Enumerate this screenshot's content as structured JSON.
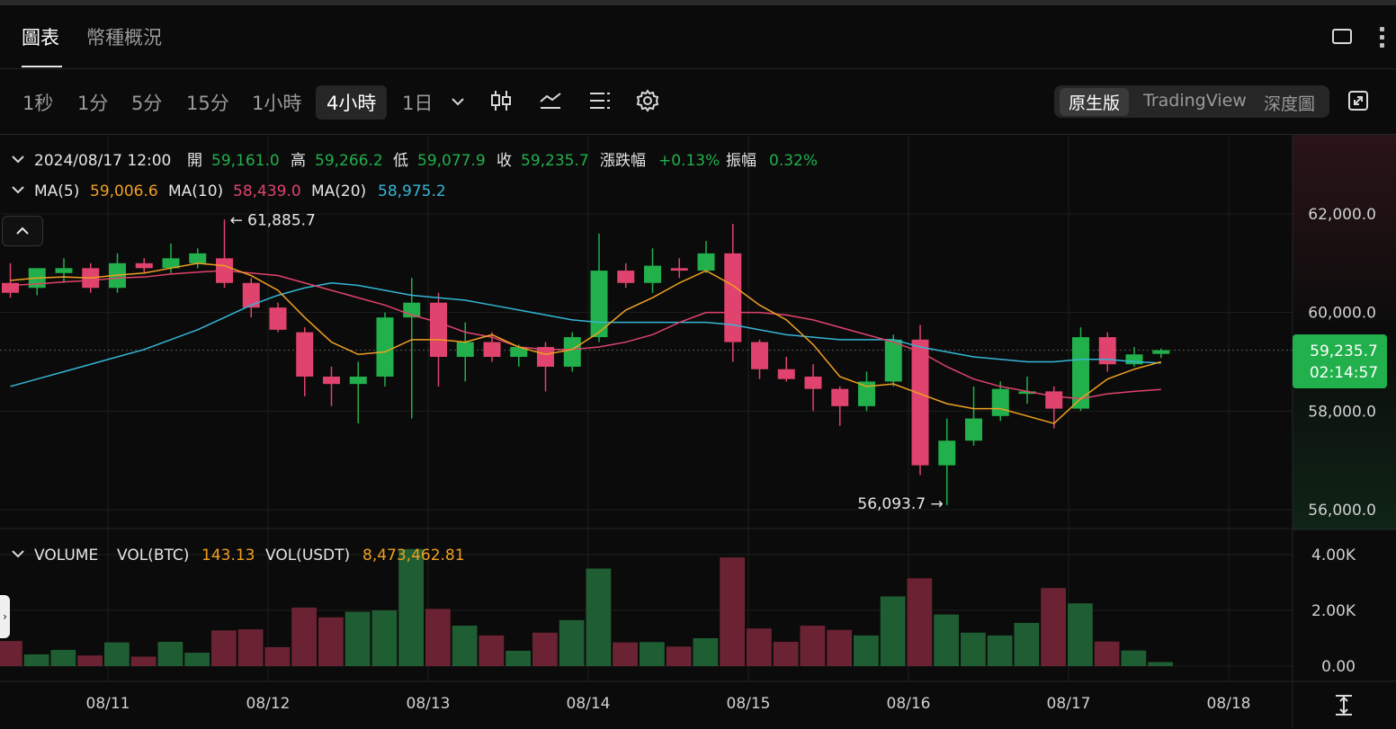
{
  "tabs": {
    "chart": "圖表",
    "overview": "幣種概況"
  },
  "toolbar": {
    "timeframes": [
      "1秒",
      "1分",
      "5分",
      "15分",
      "1小時",
      "4小時",
      "1日"
    ],
    "selected": "4小時",
    "views": [
      "原生版",
      "TradingView",
      "深度圖"
    ],
    "selected_view": "原生版"
  },
  "ohlc": {
    "datetime": "2024/08/17 12:00",
    "open_label": "開",
    "open": "59,161.0",
    "high_label": "高",
    "high": "59,266.2",
    "low_label": "低",
    "low": "59,077.9",
    "close_label": "收",
    "close": "59,235.7",
    "change_label": "漲跌幅",
    "change": "+0.13%",
    "amp_label": "振幅",
    "amp": "0.32%"
  },
  "ma": {
    "ma5_label": "MA(5)",
    "ma5": "59,006.6",
    "ma10_label": "MA(10)",
    "ma10": "58,439.0",
    "ma20_label": "MA(20)",
    "ma20": "58,975.2"
  },
  "volume": {
    "label": "VOLUME",
    "btc_label": "VOL(BTC)",
    "btc": "143.13",
    "usdt_label": "VOL(USDT)",
    "usdt": "8,473,462.81"
  },
  "colors": {
    "up": "#21b04b",
    "down": "#e0436d",
    "ma5": "#f0a020",
    "ma10": "#e0436d",
    "ma20": "#35b6d6",
    "vol_up": "#1f5e33",
    "vol_down": "#6b2333"
  },
  "chart_data": {
    "type": "candlestick",
    "price_axis": {
      "ticks": [
        62000,
        60000,
        58000,
        56000
      ],
      "tick_labels": [
        "62,000.0",
        "60,000.0",
        "58,000.0",
        "56,000.0"
      ],
      "ylim": [
        55600,
        63800
      ]
    },
    "volume_axis": {
      "ticks": [
        4000,
        2000,
        0
      ],
      "tick_labels": [
        "4.00K",
        "2.00K",
        "0.00"
      ],
      "ylim": [
        0,
        4200
      ]
    },
    "x_labels": [
      "08/11",
      "08/12",
      "08/13",
      "08/14",
      "08/15",
      "08/16",
      "08/17",
      "08/18"
    ],
    "current_price": "59,235.7",
    "countdown": "02:14:57",
    "high_marker": "61,885.7",
    "low_marker": "56,093.7",
    "candles": [
      {
        "o": 60600,
        "h": 61000,
        "l": 60300,
        "c": 60400,
        "v": 900
      },
      {
        "o": 60500,
        "h": 60900,
        "l": 60350,
        "c": 60900,
        "v": 420
      },
      {
        "o": 60800,
        "h": 61100,
        "l": 60600,
        "c": 60900,
        "v": 580
      },
      {
        "o": 60900,
        "h": 61000,
        "l": 60400,
        "c": 60500,
        "v": 380
      },
      {
        "o": 60500,
        "h": 61200,
        "l": 60400,
        "c": 61000,
        "v": 850
      },
      {
        "o": 61000,
        "h": 61100,
        "l": 60800,
        "c": 60900,
        "v": 340
      },
      {
        "o": 60900,
        "h": 61400,
        "l": 60800,
        "c": 61100,
        "v": 870
      },
      {
        "o": 61000,
        "h": 61300,
        "l": 60900,
        "c": 61200,
        "v": 480
      },
      {
        "o": 61100,
        "h": 61885.7,
        "l": 60500,
        "c": 60600,
        "v": 1280
      },
      {
        "o": 60600,
        "h": 60700,
        "l": 59900,
        "c": 60100,
        "v": 1320
      },
      {
        "o": 60100,
        "h": 60200,
        "l": 59600,
        "c": 59650,
        "v": 680
      },
      {
        "o": 59600,
        "h": 59700,
        "l": 58300,
        "c": 58700,
        "v": 2100
      },
      {
        "o": 58700,
        "h": 58900,
        "l": 58100,
        "c": 58550,
        "v": 1750
      },
      {
        "o": 58550,
        "h": 59000,
        "l": 57750,
        "c": 58700,
        "v": 1950
      },
      {
        "o": 58700,
        "h": 60000,
        "l": 58500,
        "c": 59900,
        "v": 2000
      },
      {
        "o": 59900,
        "h": 60700,
        "l": 57850,
        "c": 60200,
        "v": 4200
      },
      {
        "o": 60200,
        "h": 60400,
        "l": 58500,
        "c": 59100,
        "v": 2050
      },
      {
        "o": 59100,
        "h": 59800,
        "l": 58600,
        "c": 59400,
        "v": 1450
      },
      {
        "o": 59400,
        "h": 59600,
        "l": 59000,
        "c": 59100,
        "v": 1100
      },
      {
        "o": 59100,
        "h": 59350,
        "l": 58900,
        "c": 59300,
        "v": 550
      },
      {
        "o": 59300,
        "h": 59400,
        "l": 58400,
        "c": 58900,
        "v": 1200
      },
      {
        "o": 58900,
        "h": 59600,
        "l": 58800,
        "c": 59500,
        "v": 1650
      },
      {
        "o": 59500,
        "h": 61600,
        "l": 59400,
        "c": 60850,
        "v": 3500
      },
      {
        "o": 60850,
        "h": 61000,
        "l": 60500,
        "c": 60600,
        "v": 850
      },
      {
        "o": 60600,
        "h": 61300,
        "l": 60400,
        "c": 60950,
        "v": 860
      },
      {
        "o": 60900,
        "h": 61100,
        "l": 60700,
        "c": 60850,
        "v": 700
      },
      {
        "o": 60850,
        "h": 61450,
        "l": 60800,
        "c": 61200,
        "v": 1000
      },
      {
        "o": 61200,
        "h": 61800,
        "l": 59000,
        "c": 59400,
        "v": 3900
      },
      {
        "o": 59400,
        "h": 59450,
        "l": 58650,
        "c": 58850,
        "v": 1350
      },
      {
        "o": 58850,
        "h": 59100,
        "l": 58600,
        "c": 58650,
        "v": 870
      },
      {
        "o": 58700,
        "h": 58950,
        "l": 58000,
        "c": 58450,
        "v": 1450
      },
      {
        "o": 58450,
        "h": 58500,
        "l": 57700,
        "c": 58100,
        "v": 1300
      },
      {
        "o": 58100,
        "h": 58800,
        "l": 58000,
        "c": 58600,
        "v": 1100
      },
      {
        "o": 58600,
        "h": 59550,
        "l": 58500,
        "c": 59450,
        "v": 2500
      },
      {
        "o": 59450,
        "h": 59750,
        "l": 56700,
        "c": 56900,
        "v": 3150
      },
      {
        "o": 56900,
        "h": 57850,
        "l": 56093.7,
        "c": 57400,
        "v": 1850
      },
      {
        "o": 57400,
        "h": 58500,
        "l": 57300,
        "c": 57850,
        "v": 1200
      },
      {
        "o": 57900,
        "h": 58600,
        "l": 57800,
        "c": 58450,
        "v": 1100
      },
      {
        "o": 58350,
        "h": 58700,
        "l": 58150,
        "c": 58400,
        "v": 1550
      },
      {
        "o": 58400,
        "h": 58500,
        "l": 57650,
        "c": 58050,
        "v": 2800
      },
      {
        "o": 58050,
        "h": 59700,
        "l": 58000,
        "c": 59500,
        "v": 2250
      },
      {
        "o": 59500,
        "h": 59600,
        "l": 58800,
        "c": 58950,
        "v": 880
      },
      {
        "o": 58950,
        "h": 59300,
        "l": 58900,
        "c": 59150,
        "v": 560
      },
      {
        "o": 59161,
        "h": 59266.2,
        "l": 59077.9,
        "c": 59235.7,
        "v": 143
      }
    ],
    "ma5": [
      60650,
      60700,
      60720,
      60700,
      60760,
      60800,
      60900,
      61000,
      60950,
      60750,
      60450,
      59900,
      59400,
      59150,
      59200,
      59450,
      59450,
      59400,
      59550,
      59300,
      59150,
      59250,
      59600,
      60050,
      60300,
      60600,
      60850,
      60550,
      60150,
      59850,
      59350,
      58700,
      58500,
      58550,
      58350,
      58150,
      58050,
      58050,
      57900,
      57750,
      58250,
      58650,
      58850,
      59000
    ],
    "ma10": [
      60550,
      60580,
      60620,
      60650,
      60700,
      60720,
      60780,
      60820,
      60850,
      60800,
      60750,
      60600,
      60450,
      60300,
      60150,
      59950,
      59800,
      59600,
      59500,
      59300,
      59250,
      59250,
      59300,
      59400,
      59550,
      59800,
      60000,
      60000,
      60000,
      59950,
      59850,
      59700,
      59550,
      59400,
      59200,
      58900,
      58650,
      58500,
      58400,
      58300,
      58250,
      58350,
      58400,
      58440
    ],
    "ma20": [
      58500,
      58650,
      58800,
      58950,
      59100,
      59250,
      59450,
      59650,
      59900,
      60150,
      60350,
      60500,
      60600,
      60550,
      60450,
      60350,
      60300,
      60250,
      60150,
      60050,
      59950,
      59850,
      59800,
      59800,
      59800,
      59800,
      59800,
      59750,
      59650,
      59550,
      59500,
      59450,
      59450,
      59450,
      59300,
      59200,
      59100,
      59050,
      59000,
      59000,
      59050,
      59050,
      59000,
      58975
    ]
  }
}
